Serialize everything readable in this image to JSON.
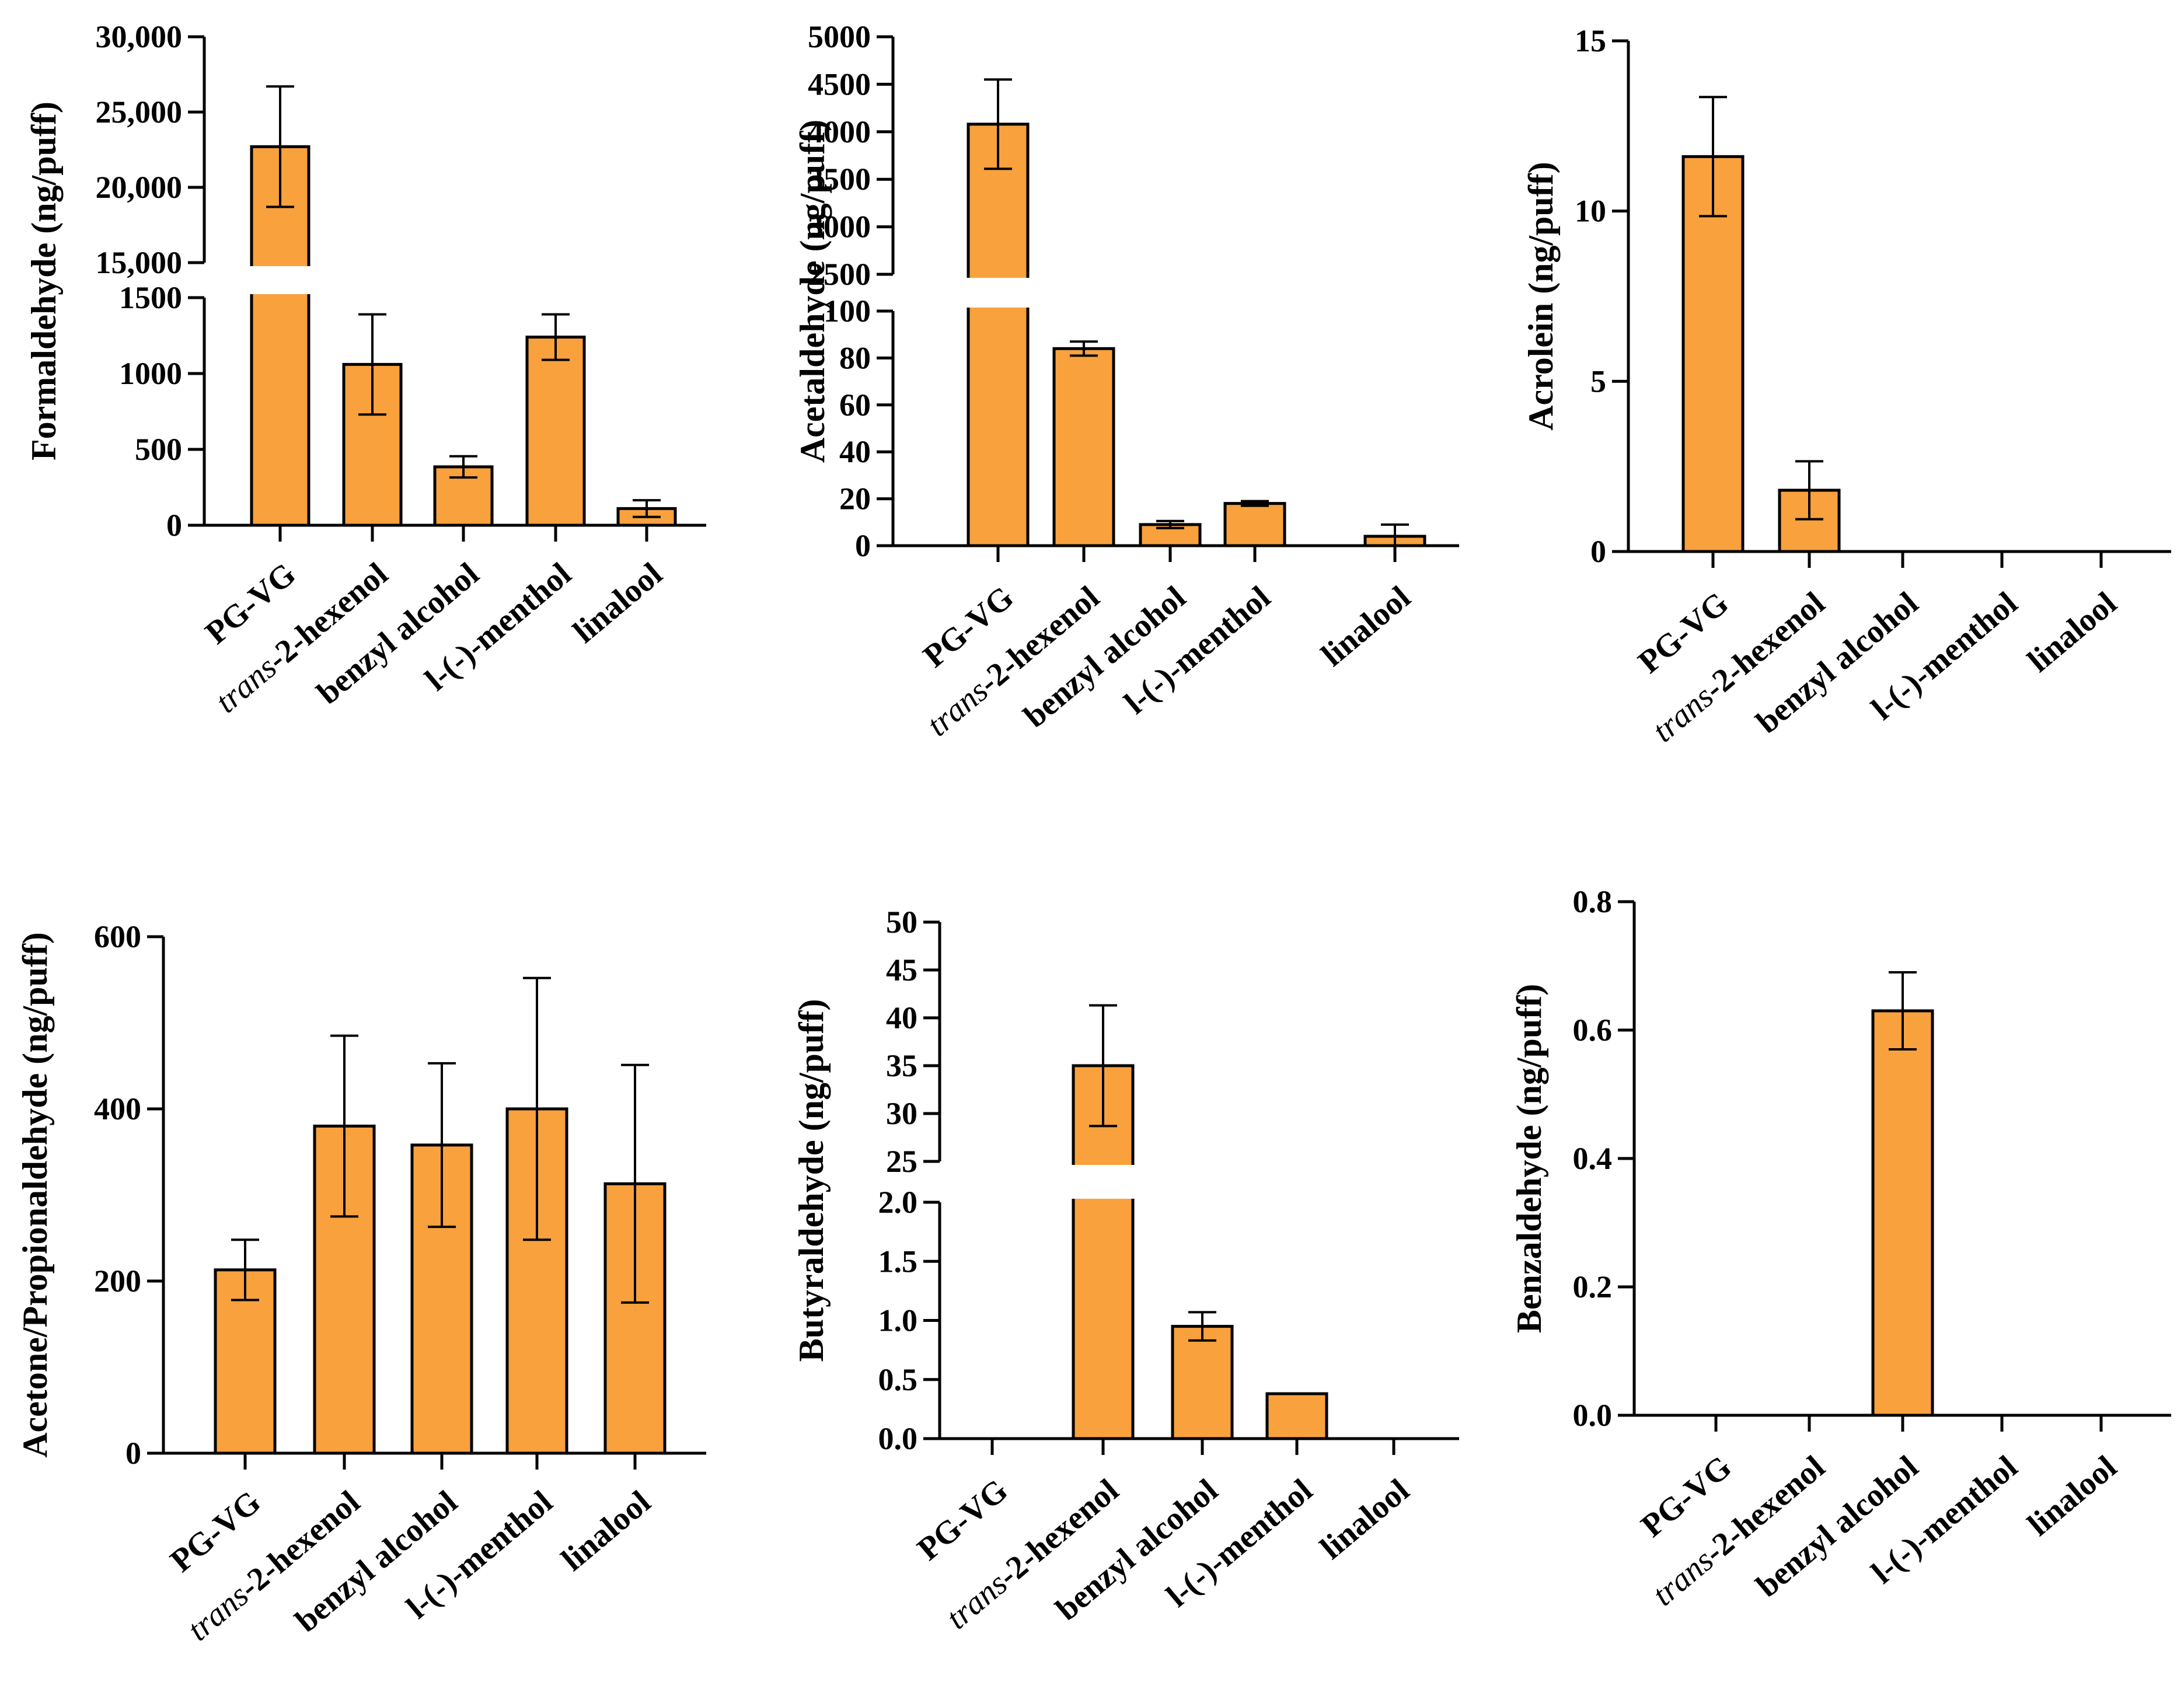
{
  "colors": {
    "bar": "#f8a13d",
    "outline": "#000000"
  },
  "chart_data": [
    {
      "type": "bar",
      "ylabel": "Formaldehyde (ng/puff)",
      "categories": [
        "PG-VG",
        "trans-2-hexenol",
        "benzyl alcohol",
        "l-(-)-menthol",
        "linalool"
      ],
      "values": [
        22700,
        1060,
        385,
        1240,
        110
      ],
      "errors": [
        4000,
        330,
        70,
        150,
        55
      ],
      "ylim": [
        0,
        30000
      ],
      "axis_break": [
        1500,
        15000
      ],
      "yticks_lower": [
        0,
        500,
        1000,
        1500
      ],
      "yticks_upper": [
        15000,
        20000,
        25000,
        30000
      ],
      "ytick_labels_lower": [
        "0",
        "500",
        "1000",
        "1500"
      ],
      "ytick_labels_upper": [
        "15,000",
        "20,000",
        "25,000",
        "30,000"
      ],
      "grid": false
    },
    {
      "type": "bar",
      "ylabel": "Acetaldehyde (ng/puff)",
      "categories": [
        "PG-VG",
        "trans-2-hexenol",
        "benzyl alcohol",
        "l-(-)-menthol",
        "linalool"
      ],
      "values": [
        4080,
        84,
        9,
        18,
        4
      ],
      "errors": [
        470,
        3,
        1.5,
        1,
        5
      ],
      "ylim": [
        0,
        5000
      ],
      "axis_break": [
        100,
        2500
      ],
      "yticks_lower": [
        0,
        20,
        40,
        60,
        80,
        100
      ],
      "yticks_upper": [
        2500,
        3000,
        3500,
        4000,
        4500,
        5000
      ],
      "ytick_labels_lower": [
        "0",
        "20",
        "40",
        "60",
        "80",
        "100"
      ],
      "ytick_labels_upper": [
        "2500",
        "3000",
        "3500",
        "4000",
        "4500",
        "5000"
      ],
      "grid": false
    },
    {
      "type": "bar",
      "ylabel": "Acrolein (ng/puff)",
      "categories": [
        "PG-VG",
        "trans-2-hexenol",
        "benzyl alcohol",
        "l-(-)-menthol",
        "linalool"
      ],
      "values": [
        11.6,
        1.8,
        0,
        0,
        0
      ],
      "errors": [
        1.75,
        0.85,
        0,
        0,
        0
      ],
      "ylim": [
        0,
        15
      ],
      "yticks": [
        0,
        5,
        10,
        15
      ],
      "ytick_labels": [
        "0",
        "5",
        "10",
        "15"
      ],
      "grid": false
    },
    {
      "type": "bar",
      "ylabel": "Acetone/Propionaldehyde (ng/puff)",
      "categories": [
        "PG-VG",
        "trans-2-hexenol",
        "benzyl alcohol",
        "l-(-)-menthol",
        "linalool"
      ],
      "values": [
        213,
        380,
        358,
        400,
        313
      ],
      "errors": [
        35,
        105,
        95,
        152,
        138
      ],
      "ylim": [
        0,
        600
      ],
      "yticks": [
        0,
        200,
        400,
        600
      ],
      "ytick_labels": [
        "0",
        "200",
        "400",
        "600"
      ],
      "grid": false
    },
    {
      "type": "bar",
      "ylabel": "Butyraldehyde (ng/puff)",
      "categories": [
        "PG-VG",
        "trans-2-hexenol",
        "benzyl alcohol",
        "l-(-)-menthol",
        "linalool"
      ],
      "values": [
        0,
        35,
        0.95,
        0.38,
        0
      ],
      "errors": [
        0,
        6.3,
        0.12,
        0,
        0
      ],
      "ylim": [
        0,
        50
      ],
      "axis_break": [
        2,
        25
      ],
      "yticks_lower": [
        0,
        0.5,
        1,
        1.5,
        2
      ],
      "yticks_upper": [
        25,
        30,
        35,
        40,
        45,
        50
      ],
      "ytick_labels_lower": [
        "0.0",
        "0.5",
        "1.0",
        "1.5",
        "2.0"
      ],
      "ytick_labels_upper": [
        "25",
        "30",
        "35",
        "40",
        "45",
        "50"
      ],
      "grid": false
    },
    {
      "type": "bar",
      "ylabel": "Benzaldehyde (ng/puff)",
      "categories": [
        "PG-VG",
        "trans-2-hexenol",
        "benzyl alcohol",
        "l-(-)-menthol",
        "linalool"
      ],
      "values": [
        0,
        0,
        0.63,
        0,
        0
      ],
      "errors": [
        0,
        0,
        0.06,
        0,
        0
      ],
      "ylim": [
        0,
        0.8
      ],
      "yticks": [
        0,
        0.2,
        0.4,
        0.6,
        0.8
      ],
      "ytick_labels": [
        "0.0",
        "0.2",
        "0.4",
        "0.6",
        "0.8"
      ],
      "grid": false
    }
  ]
}
